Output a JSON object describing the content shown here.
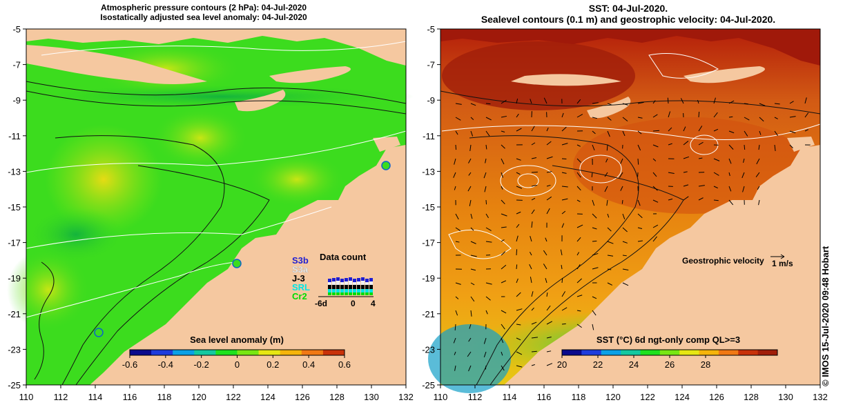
{
  "left": {
    "title_line1": "Atmospheric pressure contours (2 hPa): 04-Jul-2020",
    "title_line2": "Isostatically adjusted sea level anomaly: 04-Jul-2020",
    "colorbar": {
      "label": "Sea level anomaly (m)",
      "ticks": [
        "-0.6",
        "-0.4",
        "-0.2",
        "0",
        "0.2",
        "0.4",
        "0.6"
      ],
      "colors": [
        "#0a0a8c",
        "#1e3cdc",
        "#0aa0e6",
        "#14c8a0",
        "#1ee11e",
        "#78e614",
        "#e6e614",
        "#f5b40a",
        "#f07814",
        "#c8320a"
      ]
    },
    "data_count": {
      "title": "Data count",
      "satellites": [
        "S3b",
        "S3a",
        "J-3",
        "SRL",
        "Cr2"
      ],
      "satellite_colors": [
        "#1e1ed2",
        "#f0f0f0",
        "#000000",
        "#00e6e6",
        "#00dc00"
      ],
      "axis_ticks": [
        "-6d",
        "0",
        "4"
      ]
    }
  },
  "right": {
    "title_line1": "SST: 04-Jul-2020.",
    "title_line2": "Sealevel contours (0.1 m) and geostrophic velocity: 04-Jul-2020.",
    "velocity_label": "Geostrophic velocity",
    "velocity_scale": "1 m/s",
    "colorbar": {
      "label": "SST (°C) 6d ngt-only comp QL>=3",
      "ticks": [
        "20",
        "22",
        "24",
        "26",
        "28"
      ],
      "colors": [
        "#0a0a8c",
        "#1e3cdc",
        "#0aa0e6",
        "#14c8a0",
        "#1ee11e",
        "#78e614",
        "#e6e614",
        "#f5b40a",
        "#f07814",
        "#c8320a",
        "#a01e0a"
      ]
    }
  },
  "axes": {
    "lon_ticks": [
      "110",
      "112",
      "114",
      "116",
      "118",
      "120",
      "122",
      "124",
      "126",
      "128",
      "130",
      "132"
    ],
    "lat_ticks": [
      "-5",
      "-7",
      "-9",
      "-11",
      "-13",
      "-15",
      "-17",
      "-19",
      "-21",
      "-23",
      "-25"
    ],
    "lon_range": [
      110,
      132
    ],
    "lat_range": [
      -25,
      -5
    ]
  },
  "map_colors": {
    "land": "#f5c8a0",
    "sla_base": "#3cdc1e",
    "sst_base": "#e6820f"
  },
  "credit": "© IMOS 15-Jul-2020 09:48 Hobart"
}
